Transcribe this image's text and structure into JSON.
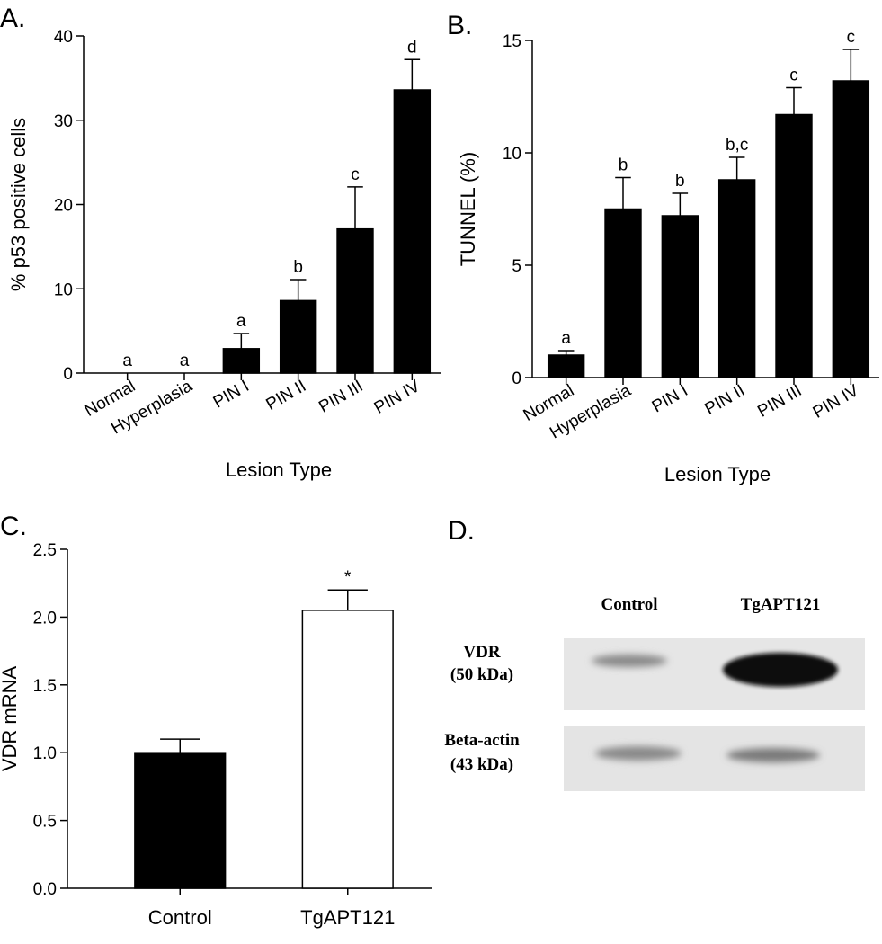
{
  "chart_data": [
    {
      "type": "bar",
      "panel": "A.",
      "y_label": "% p53 positive cells",
      "x_label": "Lesion Type",
      "categories": [
        "Normal",
        "Hyperplasia",
        "PIN I",
        "PIN II",
        "PIN III",
        "PIN IV"
      ],
      "values": [
        0,
        0,
        2.9,
        8.6,
        17.1,
        33.6
      ],
      "errors": [
        0,
        0,
        1.8,
        2.5,
        5.0,
        3.6
      ],
      "annotations": [
        "a",
        "a",
        "a",
        "b",
        "c",
        "d"
      ],
      "color": "#000000",
      "ylim": [
        0,
        40
      ],
      "yticks": [
        0,
        10,
        20,
        30,
        40
      ]
    },
    {
      "type": "bar",
      "panel": "B.",
      "y_label": "TUNNEL (%)",
      "x_label": "Lesion Type",
      "categories": [
        "Normal",
        "Hyperplasia",
        "PIN I",
        "PIN II",
        "PIN III",
        "PIN IV"
      ],
      "values": [
        1.0,
        7.5,
        7.2,
        8.8,
        11.7,
        13.2
      ],
      "errors": [
        0.2,
        1.4,
        1.0,
        1.0,
        1.2,
        1.4
      ],
      "annotations": [
        "a",
        "b",
        "b",
        "b,c",
        "c",
        "c"
      ],
      "color": "#000000",
      "ylim": [
        0,
        15
      ],
      "yticks": [
        0,
        5,
        10,
        15
      ]
    },
    {
      "type": "bar",
      "panel": "C.",
      "y_label": "VDR mRNA",
      "categories": [
        "Control",
        "TgAPT121"
      ],
      "values": [
        1.0,
        2.05
      ],
      "errors": [
        0.1,
        0.15
      ],
      "annotations": [
        null,
        "*"
      ],
      "colors": [
        "#000000",
        "#ffffff"
      ],
      "ylim": [
        0,
        2.5
      ],
      "yticks": [
        {
          "value": 0,
          "label": "0.0"
        },
        0.5,
        {
          "value": 1,
          "label": "1.0"
        },
        1.5,
        {
          "value": 2,
          "label": "2.0"
        },
        2.5
      ]
    }
  ],
  "blot": {
    "panel": "D.",
    "lanes": [
      "Control",
      "TgAPT121"
    ],
    "rows": [
      {
        "name": "VDR",
        "size": "(50 kDa)"
      },
      {
        "name": "Beta-actin",
        "size": "(43 kDa)"
      }
    ]
  }
}
